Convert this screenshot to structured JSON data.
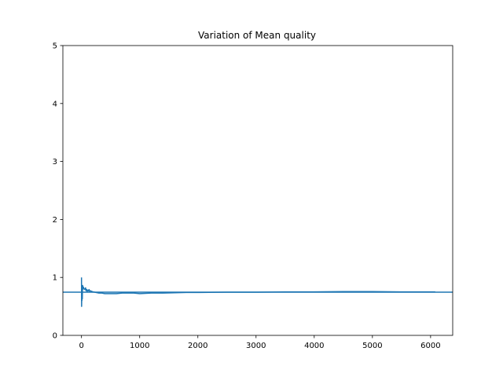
{
  "chart_data": {
    "type": "line",
    "title": "Variation of Mean quality",
    "xlabel": "",
    "ylabel": "",
    "xlim": [
      -320,
      6380
    ],
    "ylim": [
      0,
      5
    ],
    "xticks": [
      0,
      1000,
      2000,
      3000,
      4000,
      5000,
      6000
    ],
    "yticks": [
      0,
      1,
      2,
      3,
      4,
      5
    ],
    "xtick_labels": [
      "0",
      "1000",
      "2000",
      "3000",
      "4000",
      "5000",
      "6000"
    ],
    "ytick_labels": [
      "0",
      "1",
      "2",
      "3",
      "4",
      "5"
    ],
    "grid": false,
    "legend": "none",
    "series": [
      {
        "color": "#1f77b4",
        "x": [
          0,
          2,
          4,
          6,
          8,
          10,
          12,
          14,
          16,
          18,
          20,
          25,
          30,
          35,
          40,
          50,
          60,
          70,
          80,
          90,
          100,
          110,
          120,
          130,
          140,
          150,
          175,
          200,
          250,
          300,
          350,
          400,
          500,
          600,
          700,
          800,
          900,
          1000,
          1200,
          1400,
          1600,
          1800,
          2000,
          2500,
          3000,
          3500,
          4000,
          4500,
          5000,
          5500,
          6080
        ],
        "y": [
          1.0,
          0.5,
          0.67,
          0.75,
          0.6,
          0.83,
          0.71,
          0.63,
          0.78,
          0.8,
          0.86,
          0.83,
          0.8,
          0.83,
          0.81,
          0.8,
          0.79,
          0.82,
          0.77,
          0.79,
          0.76,
          0.78,
          0.77,
          0.79,
          0.76,
          0.77,
          0.76,
          0.75,
          0.74,
          0.73,
          0.73,
          0.72,
          0.72,
          0.72,
          0.73,
          0.73,
          0.73,
          0.72,
          0.73,
          0.73,
          0.735,
          0.74,
          0.74,
          0.745,
          0.745,
          0.75,
          0.75,
          0.755,
          0.755,
          0.75,
          0.75
        ]
      }
    ],
    "reference_line": {
      "y": 0.745,
      "color": "#1f77b4"
    }
  }
}
